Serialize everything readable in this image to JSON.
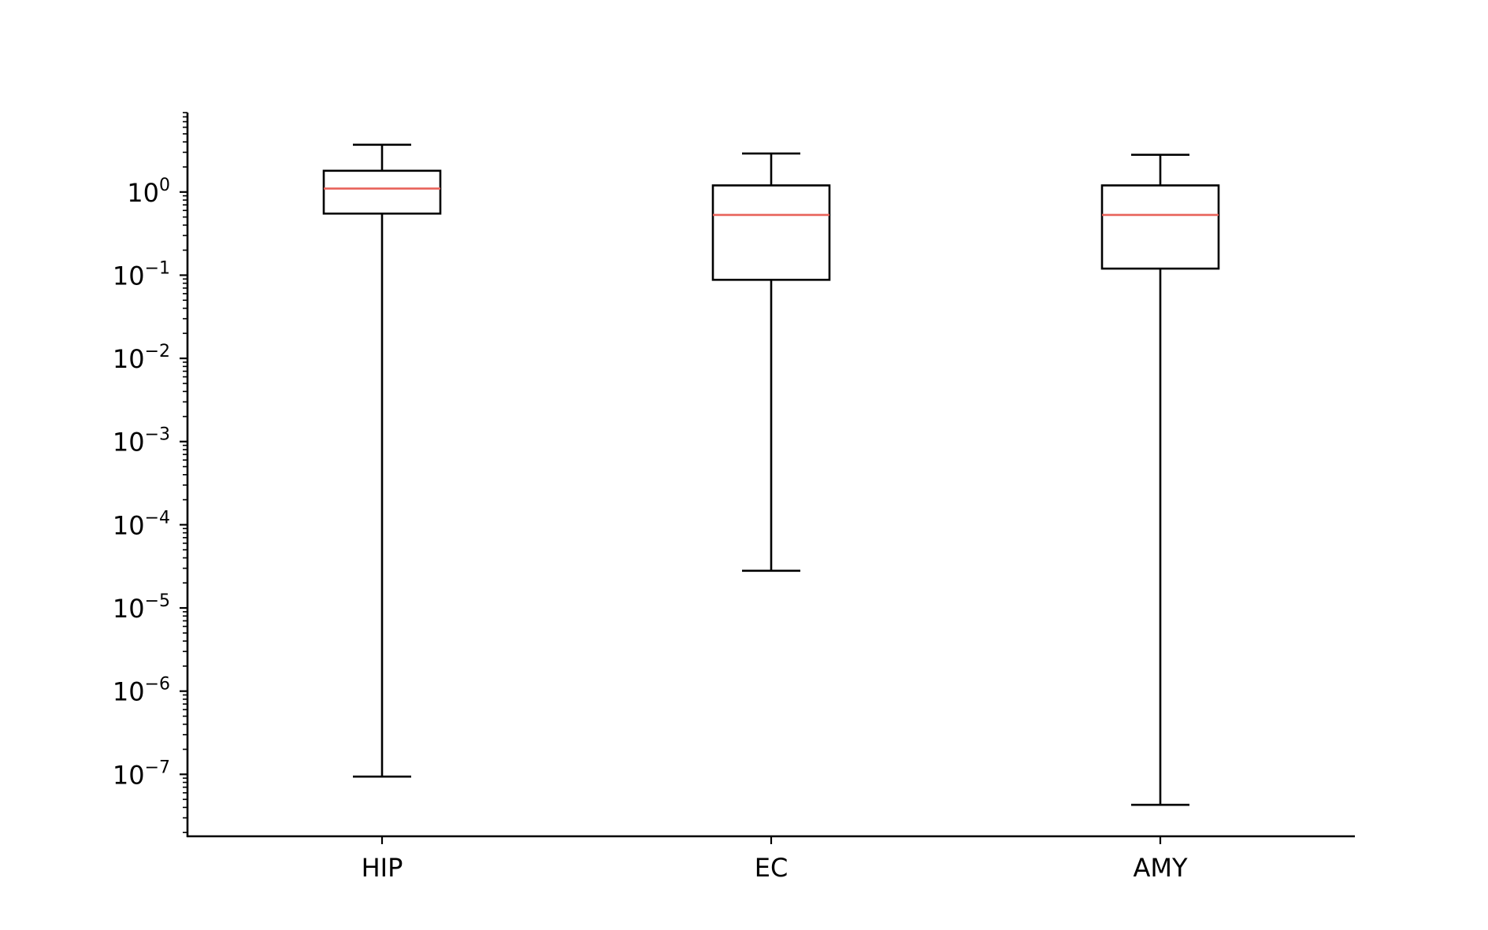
{
  "chart_data": {
    "type": "boxplot",
    "categories": [
      "HIP",
      "EC",
      "AMY"
    ],
    "y_scale": "log",
    "ylim": [
      1.8e-08,
      9.0
    ],
    "y_ticks": [
      {
        "value": 1,
        "label": "10",
        "exponent": "0"
      },
      {
        "value": 0.1,
        "label": "10",
        "exponent": "−1"
      },
      {
        "value": 0.01,
        "label": "10",
        "exponent": "−2"
      },
      {
        "value": 0.001,
        "label": "10",
        "exponent": "−3"
      },
      {
        "value": 0.0001,
        "label": "10",
        "exponent": "−4"
      },
      {
        "value": 1e-05,
        "label": "10",
        "exponent": "−5"
      },
      {
        "value": 1e-06,
        "label": "10",
        "exponent": "−6"
      },
      {
        "value": 1e-07,
        "label": "10",
        "exponent": "−7"
      }
    ],
    "boxes": [
      {
        "category": "HIP",
        "whisker_low": 9.4e-08,
        "q1": 0.55,
        "median": 1.1,
        "q3": 1.8,
        "whisker_high": 3.7
      },
      {
        "category": "EC",
        "whisker_low": 2.8e-05,
        "q1": 0.088,
        "median": 0.53,
        "q3": 1.2,
        "whisker_high": 2.9
      },
      {
        "category": "AMY",
        "whisker_low": 4.3e-08,
        "q1": 0.12,
        "median": 0.53,
        "q3": 1.2,
        "whisker_high": 2.8
      }
    ],
    "title": "",
    "xlabel": "",
    "ylabel": "",
    "grid": false,
    "colors": {
      "box": "#000000",
      "median": "#e8625a",
      "axis": "#000000"
    }
  }
}
